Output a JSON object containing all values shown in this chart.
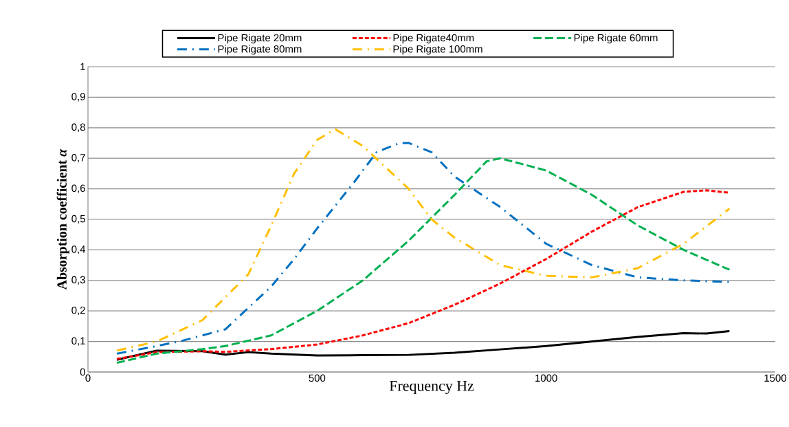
{
  "chart_data": {
    "type": "line",
    "xlabel": "Frequency Hz",
    "ylabel": "Absorption  coefficient *α*",
    "xlim": [
      0,
      1500
    ],
    "ylim": [
      0,
      1
    ],
    "xticks": [
      0,
      500,
      1000,
      1500
    ],
    "yticks": [
      0,
      {
        "value": 0.1,
        "label": "0,1"
      },
      {
        "value": 0.2,
        "label": "0,2"
      },
      {
        "value": 0.3,
        "label": "0,3"
      },
      {
        "value": 0.4,
        "label": "0,4"
      },
      {
        "value": 0.5,
        "label": "0,5"
      },
      {
        "value": 0.6,
        "label": "0,6"
      },
      {
        "value": 0.7,
        "label": "0,7"
      },
      {
        "value": 0.8,
        "label": "0,8"
      },
      {
        "value": 0.9,
        "label": "0,9"
      },
      1
    ],
    "grid": "y",
    "legend": "top",
    "series": [
      {
        "name": "Pipe Rigate 20mm",
        "color": "#000000",
        "line_style": "solid",
        "x": [
          63,
          150,
          250,
          300,
          350,
          400,
          500,
          600,
          700,
          800,
          900,
          1000,
          1100,
          1200,
          1300,
          1350,
          1400
        ],
        "values": [
          0.04,
          0.07,
          0.068,
          0.057,
          0.065,
          0.06,
          0.054,
          0.055,
          0.056,
          0.063,
          0.074,
          0.085,
          0.1,
          0.115,
          0.127,
          0.126,
          0.134
        ]
      },
      {
        "name": "Pipe Rigate40mm",
        "color": "#ff0000",
        "line_style": "dotted",
        "x": [
          63,
          150,
          250,
          300,
          400,
          500,
          600,
          700,
          800,
          900,
          1000,
          1100,
          1200,
          1300,
          1350,
          1400
        ],
        "values": [
          0.043,
          0.065,
          0.068,
          0.066,
          0.075,
          0.09,
          0.12,
          0.16,
          0.22,
          0.29,
          0.37,
          0.46,
          0.54,
          0.59,
          0.595,
          0.587
        ]
      },
      {
        "name": "Pipe Rigate 60mm",
        "color": "#00b050",
        "line_style": "dashed",
        "x": [
          63,
          150,
          250,
          300,
          400,
          500,
          600,
          700,
          800,
          870,
          900,
          1000,
          1100,
          1200,
          1300,
          1400
        ],
        "values": [
          0.03,
          0.06,
          0.075,
          0.085,
          0.12,
          0.2,
          0.3,
          0.43,
          0.58,
          0.69,
          0.7,
          0.66,
          0.58,
          0.48,
          0.4,
          0.335
        ]
      },
      {
        "name": "Pipe Rigate 80mm",
        "color": "#0070c0",
        "line_style": "dashdot",
        "x": [
          63,
          150,
          200,
          300,
          400,
          450,
          500,
          580,
          630,
          680,
          700,
          750,
          800,
          900,
          1000,
          1100,
          1200,
          1300,
          1400
        ],
        "values": [
          0.06,
          0.085,
          0.1,
          0.14,
          0.28,
          0.37,
          0.47,
          0.62,
          0.72,
          0.75,
          0.75,
          0.72,
          0.64,
          0.54,
          0.42,
          0.35,
          0.31,
          0.3,
          0.295
        ]
      },
      {
        "name": "Pipe Rigate 100mm",
        "color": "#ffc000",
        "line_style": "dashdot",
        "x": [
          63,
          150,
          250,
          350,
          400,
          450,
          500,
          540,
          600,
          700,
          750,
          800,
          900,
          1000,
          1100,
          1200,
          1300,
          1400
        ],
        "values": [
          0.07,
          0.1,
          0.17,
          0.32,
          0.48,
          0.65,
          0.76,
          0.795,
          0.74,
          0.6,
          0.5,
          0.44,
          0.35,
          0.315,
          0.31,
          0.34,
          0.42,
          0.535
        ]
      }
    ]
  }
}
